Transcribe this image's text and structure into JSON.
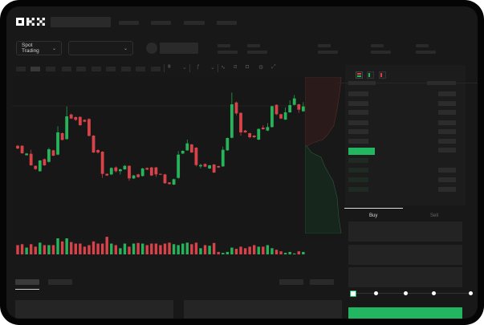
{
  "brand": {
    "logo": "OKX"
  },
  "market_selector": {
    "label": "Spot Trading",
    "chevron": "chevron-down-icon"
  },
  "pair_selector": {
    "chevron": "chevron-down-icon"
  },
  "colors": {
    "up": "#26b35a",
    "down": "#d8434a",
    "accent": "#22b661",
    "background": "#181818"
  },
  "toolbar_icons": [
    "candles-icon",
    "chevron-down-icon",
    "indicator-icon",
    "chevron-down-icon",
    "line-icon",
    "ruler-icon",
    "camera-icon",
    "settings-icon",
    "fullscreen-icon"
  ],
  "orderbook": {
    "view_icons": [
      "orderbook-both-icon",
      "orderbook-bids-icon",
      "orderbook-asks-icon"
    ]
  },
  "trade_form": {
    "tabs": [
      "Buy",
      "Sell"
    ],
    "active_tab": "Buy",
    "slider_steps": 5,
    "slider_value": 0
  },
  "chart_data": {
    "type": "candlestick",
    "candles": [
      [
        185,
        188,
        172,
        175
      ],
      [
        185,
        187,
        155,
        157
      ],
      [
        150,
        158,
        148,
        156
      ],
      [
        155,
        170,
        110,
        112
      ],
      [
        110,
        112,
        95,
        98
      ],
      [
        90,
        132,
        88,
        130
      ],
      [
        135,
        137,
        110,
        112
      ],
      [
        125,
        178,
        122,
        172
      ],
      [
        168,
        170,
        146,
        148
      ],
      [
        152,
        258,
        150,
        235
      ],
      [
        232,
        235,
        205,
        207
      ],
      [
        210,
        332,
        208,
        295
      ],
      [
        302,
        305,
        285,
        287
      ],
      [
        292,
        295,
        278,
        282
      ],
      [
        293,
        295,
        260,
        262
      ],
      [
        282,
        284,
        273,
        275
      ],
      [
        285,
        288,
        220,
        222
      ],
      [
        223,
        225,
        158,
        160
      ],
      [
        169,
        172,
        155,
        160
      ],
      [
        163,
        165,
        65,
        80
      ],
      [
        80,
        82,
        72,
        74
      ],
      [
        78,
        105,
        75,
        102
      ],
      [
        104,
        108,
        85,
        90
      ],
      [
        90,
        100,
        78,
        97
      ],
      [
        97,
        113,
        95,
        110
      ],
      [
        110,
        112,
        54,
        63
      ],
      [
        63,
        76,
        61,
        74
      ],
      [
        78,
        80,
        66,
        68
      ],
      [
        72,
        103,
        70,
        100
      ],
      [
        102,
        104,
        94,
        96
      ],
      [
        104,
        106,
        72,
        74
      ],
      [
        104,
        106,
        68,
        78
      ],
      [
        80,
        81,
        76,
        77
      ],
      [
        78,
        80,
        43,
        45
      ],
      [
        48,
        49,
        40,
        42
      ],
      [
        40,
        62,
        38,
        60
      ],
      [
        65,
        165,
        62,
        152
      ],
      [
        156,
        168,
        154,
        166
      ],
      [
        168,
        208,
        166,
        194
      ],
      [
        190,
        192,
        158,
        160
      ],
      [
        178,
        180,
        108,
        113
      ],
      [
        108,
        118,
        100,
        113
      ],
      [
        117,
        119,
        105,
        107
      ],
      [
        100,
        114,
        98,
        112
      ],
      [
        115,
        117,
        83,
        85
      ],
      [
        109,
        111,
        102,
        104
      ],
      [
        108,
        182,
        106,
        170
      ],
      [
        168,
        216,
        166,
        214
      ],
      [
        215,
        384,
        213,
        340
      ],
      [
        347,
        350,
        300,
        306
      ],
      [
        308,
        310,
        223,
        235
      ],
      [
        242,
        244,
        233,
        235
      ],
      [
        232,
        234,
        213,
        217
      ],
      [
        223,
        225,
        214,
        217
      ],
      [
        208,
        250,
        206,
        248
      ],
      [
        253,
        262,
        245,
        247
      ],
      [
        242,
        270,
        240,
        255
      ],
      [
        255,
        335,
        253,
        333
      ],
      [
        338,
        340,
        300,
        303
      ],
      [
        303,
        305,
        285,
        287
      ],
      [
        283,
        328,
        281,
        310
      ],
      [
        310,
        355,
        308,
        337
      ],
      [
        338,
        375,
        336,
        362
      ],
      [
        340,
        342,
        308,
        320
      ],
      [
        314,
        348,
        312,
        332
      ]
    ],
    "volume": [
      30,
      33,
      22,
      33,
      25,
      38,
      30,
      30,
      30,
      52,
      42,
      52,
      40,
      35,
      35,
      25,
      30,
      42,
      35,
      35,
      57,
      35,
      30,
      20,
      35,
      25,
      35,
      37,
      35,
      30,
      35,
      35,
      30,
      35,
      38,
      33,
      30,
      35,
      38,
      33,
      38,
      20,
      30,
      28,
      37,
      8,
      5,
      8,
      22,
      18,
      25,
      20,
      25,
      30,
      25,
      25,
      30,
      20,
      15,
      10,
      5,
      8,
      3,
      10,
      8
    ]
  }
}
